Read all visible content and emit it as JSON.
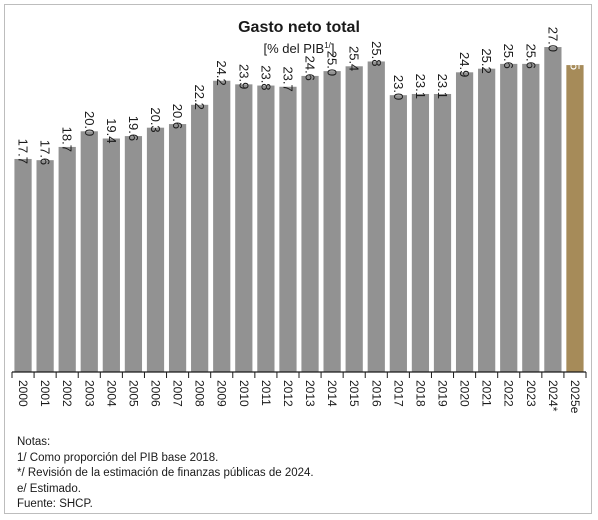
{
  "chart_data": {
    "type": "bar",
    "title": "Gasto neto total",
    "subtitle_main": "[% del PIB",
    "subtitle_sup": "1/",
    "subtitle_end": "]",
    "categories": [
      "2000",
      "2001",
      "2002",
      "2003",
      "2004",
      "2005",
      "2006",
      "2007",
      "2008",
      "2009",
      "2010",
      "2011",
      "2012",
      "2013",
      "2014",
      "2015",
      "2016",
      "2017",
      "2018",
      "2019",
      "2020",
      "2021",
      "2022",
      "2023",
      "2024*",
      "2025e"
    ],
    "values": [
      17.7,
      17.6,
      18.7,
      20.0,
      19.4,
      19.6,
      20.3,
      20.6,
      22.2,
      24.2,
      23.9,
      23.8,
      23.7,
      24.6,
      25.0,
      25.4,
      25.8,
      23.0,
      23.1,
      23.1,
      24.9,
      25.2,
      25.6,
      25.6,
      27.0,
      25.5
    ],
    "value_labels": [
      "17.7",
      "17.6",
      "18.7",
      "20.0",
      "19.4",
      "19.6",
      "20.3",
      "20.6",
      "22.2",
      "24.2",
      "23.9",
      "23.8",
      "23.7",
      "24.6",
      "25.0",
      "25.4",
      "25.8",
      "23.0",
      "23.1",
      "23.1",
      "24.9",
      "25.2",
      "25.6",
      "25.6",
      "27.0",
      "25.5"
    ],
    "ylim": [
      0,
      28
    ],
    "grid": false,
    "colors": {
      "default": "#929292",
      "highlight": "#a68b59",
      "highlight_category": "2025e"
    }
  },
  "notes": {
    "heading": "Notas:",
    "lines": [
      "1/ Como proporción del PIB base 2018.",
      "*/ Revisión de la estimación de finanzas públicas de 2024.",
      "e/ Estimado.",
      "Fuente: SHCP."
    ]
  }
}
